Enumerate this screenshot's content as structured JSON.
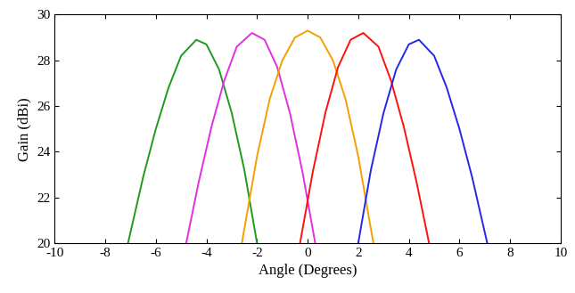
{
  "chart_data": {
    "type": "line",
    "x_label": "Angle (Degrees)",
    "y_label": "Gain (dBi)",
    "xlim": [
      -10,
      10
    ],
    "xticks": [
      -10,
      -8,
      -6,
      -4,
      -2,
      0,
      2,
      4,
      6,
      8,
      10
    ],
    "ylim": [
      20,
      30
    ],
    "yticks": [
      20,
      22,
      24,
      26,
      28,
      30
    ],
    "grid": false,
    "series": [
      {
        "color": "#1f9a1f",
        "x": [
          -7.1,
          -6.5,
          -6.0,
          -5.5,
          -5.0,
          -4.4,
          -4.0,
          -3.5,
          -3.0,
          -2.5,
          -2.0
        ],
        "values": [
          20.0,
          22.9,
          25.0,
          26.8,
          28.2,
          28.9,
          28.7,
          27.6,
          25.7,
          23.2,
          20.0
        ]
      },
      {
        "color": "#e030e0",
        "x": [
          -4.8,
          -4.3,
          -3.8,
          -3.3,
          -2.8,
          -2.2,
          -1.7,
          -1.2,
          -0.7,
          -0.2,
          0.3
        ],
        "values": [
          20.0,
          22.7,
          25.1,
          27.1,
          28.6,
          29.2,
          28.9,
          27.7,
          25.7,
          23.1,
          20.0
        ]
      },
      {
        "color": "#f5a000",
        "x": [
          -2.6,
          -2.0,
          -1.5,
          -1.0,
          -0.5,
          0.0,
          0.5,
          1.0,
          1.5,
          2.0,
          2.6
        ],
        "values": [
          20.0,
          23.8,
          26.3,
          28.0,
          29.0,
          29.3,
          29.0,
          28.0,
          26.3,
          23.8,
          20.0
        ]
      },
      {
        "color": "#ff1010",
        "x": [
          -0.3,
          0.2,
          0.7,
          1.2,
          1.7,
          2.2,
          2.8,
          3.3,
          3.8,
          4.3,
          4.8
        ],
        "values": [
          20.0,
          23.1,
          25.7,
          27.7,
          28.9,
          29.2,
          28.6,
          27.1,
          25.1,
          22.7,
          20.0
        ]
      },
      {
        "color": "#2626e6",
        "x": [
          2.0,
          2.5,
          3.0,
          3.5,
          4.0,
          4.4,
          5.0,
          5.5,
          6.0,
          6.5,
          7.1
        ],
        "values": [
          20.0,
          23.2,
          25.7,
          27.6,
          28.7,
          28.9,
          28.2,
          26.8,
          25.0,
          22.9,
          20.0
        ]
      }
    ]
  }
}
